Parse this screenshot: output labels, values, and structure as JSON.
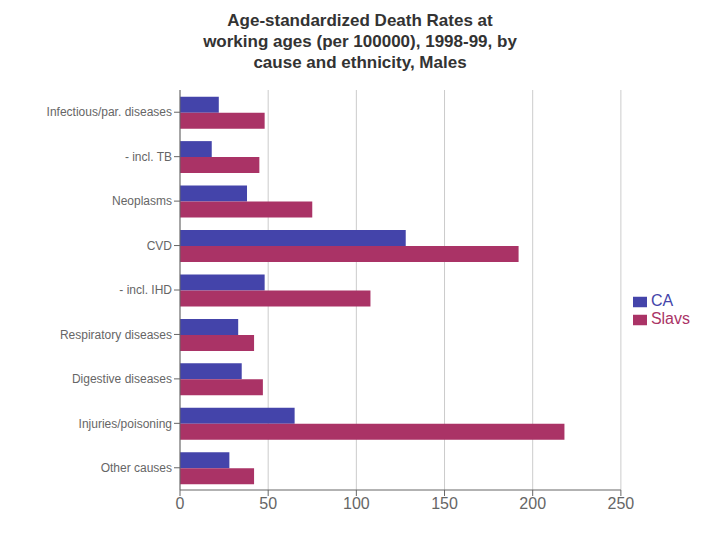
{
  "chart_data": {
    "type": "bar",
    "orientation": "horizontal",
    "title": "Age-standardized Death Rates at\nworking ages (per 100000), 1998-99, by\ncause and ethnicity, Males",
    "categories": [
      "Infectious/par. diseases",
      "- incl. TB",
      "Neoplasms",
      "CVD",
      "- incl. IHD",
      "Respiratory diseases",
      "Digestive diseases",
      "Injuries/poisoning",
      "Other causes"
    ],
    "series": [
      {
        "name": "CA",
        "color": "#4444AA",
        "values": [
          22,
          18,
          38,
          128,
          48,
          33,
          35,
          65,
          28
        ]
      },
      {
        "name": "Slavs",
        "color": "#AA3366",
        "values": [
          48,
          45,
          75,
          192,
          108,
          42,
          47,
          218,
          42
        ]
      }
    ],
    "xlim": [
      0,
      250
    ],
    "xticks": [
      0,
      50,
      100,
      150,
      200,
      250
    ],
    "grid": true,
    "legend": "right"
  }
}
